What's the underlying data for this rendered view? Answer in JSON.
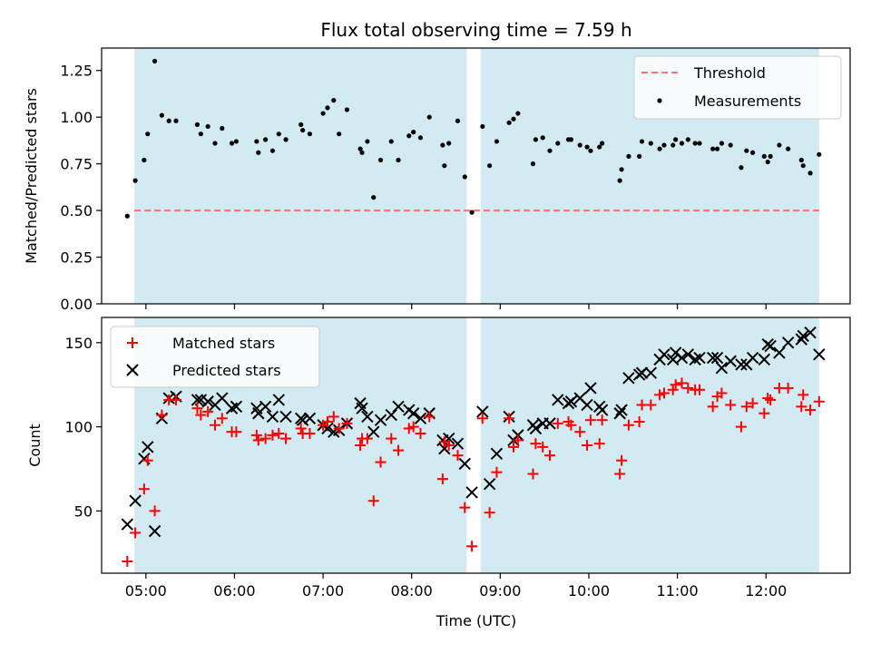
{
  "chart_data": [
    {
      "type": "scatter",
      "title": "Flux total observing time = 7.59 h",
      "xlabel": "",
      "ylabel": "Matched/Predicted stars",
      "x_unit": "hours (UTC)",
      "xlim": [
        4.5,
        12.95
      ],
      "ylim": [
        0,
        1.37
      ],
      "yticks": [
        0.0,
        0.25,
        0.5,
        0.75,
        1.0,
        1.25
      ],
      "ytick_labels": [
        "0.00",
        "0.25",
        "0.50",
        "0.75",
        "1.00",
        "1.25"
      ],
      "shaded_intervals": [
        [
          4.87,
          8.62
        ],
        [
          8.78,
          12.6
        ]
      ],
      "shade_color": "#add8e6",
      "threshold": {
        "name": "Threshold",
        "y": 0.5,
        "x_range": [
          4.87,
          12.6
        ],
        "color": "#ff6f6f"
      },
      "legend": {
        "placement": "upper right",
        "entries": [
          "Threshold",
          "Measurements"
        ]
      },
      "series": [
        {
          "name": "Measurements",
          "color": "#000000",
          "marker": "dot",
          "x": [
            4.79,
            4.88,
            4.98,
            5.02,
            5.1,
            5.18,
            5.26,
            5.34,
            5.58,
            5.62,
            5.7,
            5.78,
            5.86,
            5.97,
            6.02,
            6.25,
            6.27,
            6.35,
            6.43,
            6.5,
            6.58,
            6.75,
            6.77,
            6.85,
            7.0,
            7.05,
            7.12,
            7.18,
            7.27,
            7.42,
            7.44,
            7.5,
            7.57,
            7.65,
            7.77,
            7.85,
            7.97,
            8.02,
            8.1,
            8.2,
            8.35,
            8.37,
            8.42,
            8.52,
            8.6,
            8.68,
            8.8,
            8.88,
            8.96,
            9.1,
            9.15,
            9.2,
            9.37,
            9.4,
            9.48,
            9.56,
            9.65,
            9.77,
            9.8,
            9.9,
            9.98,
            10.02,
            10.12,
            10.15,
            10.35,
            10.37,
            10.45,
            10.57,
            10.6,
            10.7,
            10.8,
            10.85,
            10.95,
            10.98,
            11.05,
            11.12,
            11.2,
            11.25,
            11.4,
            11.45,
            11.5,
            11.6,
            11.72,
            11.78,
            11.85,
            11.98,
            12.02,
            12.05,
            12.15,
            12.25,
            12.4,
            12.42,
            12.5,
            12.6
          ],
          "y": [
            0.47,
            0.66,
            0.77,
            0.91,
            1.3,
            1.01,
            0.98,
            0.98,
            0.96,
            0.91,
            0.95,
            0.86,
            0.94,
            0.86,
            0.87,
            0.87,
            0.81,
            0.88,
            0.82,
            0.91,
            0.88,
            0.96,
            0.93,
            0.91,
            1.02,
            1.05,
            1.09,
            0.91,
            1.04,
            0.83,
            0.81,
            0.87,
            0.57,
            0.77,
            0.87,
            0.77,
            0.9,
            0.92,
            0.89,
            1.0,
            0.85,
            0.74,
            0.86,
            0.98,
            0.68,
            0.49,
            0.95,
            0.74,
            0.87,
            0.97,
            0.99,
            1.02,
            0.75,
            0.88,
            0.89,
            0.82,
            0.86,
            0.88,
            0.88,
            0.85,
            0.84,
            0.82,
            0.84,
            0.86,
            0.66,
            0.72,
            0.79,
            0.79,
            0.87,
            0.86,
            0.83,
            0.85,
            0.85,
            0.88,
            0.86,
            0.88,
            0.86,
            0.86,
            0.83,
            0.83,
            0.86,
            0.85,
            0.73,
            0.82,
            0.81,
            0.79,
            0.76,
            0.79,
            0.85,
            0.83,
            0.77,
            0.74,
            0.7,
            0.8
          ]
        }
      ]
    },
    {
      "type": "scatter",
      "title": "",
      "xlabel": "Time (UTC)",
      "ylabel": "Count",
      "x_unit": "hours (UTC)",
      "xlim": [
        4.5,
        12.95
      ],
      "ylim": [
        13,
        165
      ],
      "yticks": [
        50,
        100,
        150
      ],
      "ytick_labels": [
        "50",
        "100",
        "150"
      ],
      "xticks": [
        5,
        6,
        7,
        8,
        9,
        10,
        11,
        12
      ],
      "xtick_labels": [
        "05:00",
        "06:00",
        "07:00",
        "08:00",
        "09:00",
        "10:00",
        "11:00",
        "12:00"
      ],
      "shaded_intervals": [
        [
          4.87,
          8.62
        ],
        [
          8.78,
          12.6
        ]
      ],
      "shade_color": "#add8e6",
      "legend": {
        "placement": "upper left",
        "entries": [
          "Matched stars",
          "Predicted stars"
        ]
      },
      "series": [
        {
          "name": "Matched stars",
          "color": "#ff0000",
          "marker": "plus",
          "x": [
            4.79,
            4.88,
            4.98,
            5.02,
            5.1,
            5.18,
            5.26,
            5.34,
            5.58,
            5.62,
            5.7,
            5.78,
            5.86,
            5.97,
            6.02,
            6.25,
            6.27,
            6.35,
            6.43,
            6.5,
            6.58,
            6.75,
            6.77,
            6.85,
            7.0,
            7.05,
            7.12,
            7.18,
            7.27,
            7.42,
            7.44,
            7.5,
            7.57,
            7.65,
            7.77,
            7.85,
            7.97,
            8.02,
            8.1,
            8.2,
            8.35,
            8.37,
            8.42,
            8.52,
            8.6,
            8.68,
            8.8,
            8.88,
            8.96,
            9.1,
            9.15,
            9.2,
            9.37,
            9.4,
            9.48,
            9.56,
            9.65,
            9.77,
            9.8,
            9.9,
            9.98,
            10.02,
            10.12,
            10.15,
            10.35,
            10.37,
            10.45,
            10.57,
            10.6,
            10.7,
            10.8,
            10.85,
            10.95,
            10.98,
            11.05,
            11.12,
            11.2,
            11.25,
            11.4,
            11.45,
            11.5,
            11.6,
            11.72,
            11.78,
            11.85,
            11.98,
            12.02,
            12.05,
            12.15,
            12.25,
            12.4,
            12.42,
            12.5,
            12.6
          ],
          "y": [
            20,
            37,
            63,
            80,
            50,
            107,
            116,
            116,
            111,
            107,
            109,
            101,
            105,
            97,
            97,
            95,
            92,
            93,
            95,
            96,
            93,
            99,
            96,
            96,
            101,
            103,
            106,
            99,
            102,
            89,
            93,
            93,
            56,
            79,
            93,
            86,
            99,
            100,
            96,
            106,
            69,
            91,
            89,
            83,
            52,
            29,
            105,
            49,
            73,
            105,
            88,
            92,
            72,
            90,
            88,
            83,
            102,
            103,
            101,
            97,
            89,
            104,
            90,
            104,
            72,
            80,
            101,
            103,
            113,
            113,
            119,
            120,
            122,
            125,
            126,
            123,
            122,
            122,
            112,
            118,
            120,
            113,
            100,
            112,
            114,
            108,
            117,
            116,
            123,
            123,
            112,
            119,
            110,
            115
          ]
        },
        {
          "name": "Predicted stars",
          "color": "#000000",
          "marker": "x",
          "x": [
            4.79,
            4.88,
            4.98,
            5.02,
            5.1,
            5.18,
            5.26,
            5.34,
            5.58,
            5.62,
            5.7,
            5.78,
            5.86,
            5.97,
            6.02,
            6.25,
            6.27,
            6.35,
            6.43,
            6.5,
            6.58,
            6.75,
            6.77,
            6.85,
            7.0,
            7.05,
            7.12,
            7.18,
            7.27,
            7.42,
            7.44,
            7.5,
            7.57,
            7.65,
            7.77,
            7.85,
            7.97,
            8.02,
            8.1,
            8.2,
            8.35,
            8.37,
            8.42,
            8.52,
            8.6,
            8.68,
            8.8,
            8.88,
            8.96,
            9.1,
            9.15,
            9.2,
            9.37,
            9.4,
            9.48,
            9.56,
            9.65,
            9.77,
            9.8,
            9.9,
            9.98,
            10.02,
            10.12,
            10.15,
            10.35,
            10.37,
            10.45,
            10.57,
            10.6,
            10.7,
            10.8,
            10.85,
            10.95,
            10.98,
            11.05,
            11.12,
            11.2,
            11.25,
            11.4,
            11.45,
            11.5,
            11.6,
            11.72,
            11.78,
            11.85,
            11.98,
            12.02,
            12.05,
            12.15,
            12.25,
            12.4,
            12.42,
            12.5,
            12.6
          ],
          "y": [
            42,
            56,
            81,
            88,
            38,
            105,
            117,
            118,
            116,
            116,
            115,
            113,
            117,
            111,
            112,
            111,
            108,
            112,
            106,
            116,
            106,
            105,
            104,
            105,
            101,
            99,
            97,
            98,
            102,
            114,
            111,
            106,
            97,
            104,
            107,
            112,
            110,
            108,
            105,
            108,
            92,
            87,
            93,
            90,
            78,
            61,
            109,
            66,
            84,
            106,
            92,
            95,
            101,
            99,
            102,
            102,
            116,
            114,
            115,
            117,
            113,
            123,
            112,
            110,
            108,
            110,
            129,
            131,
            132,
            132,
            140,
            143,
            140,
            144,
            141,
            143,
            140,
            141,
            141,
            141,
            135,
            139,
            137,
            137,
            141,
            140,
            149,
            148,
            144,
            150,
            152,
            154,
            156,
            143
          ]
        }
      ]
    }
  ]
}
